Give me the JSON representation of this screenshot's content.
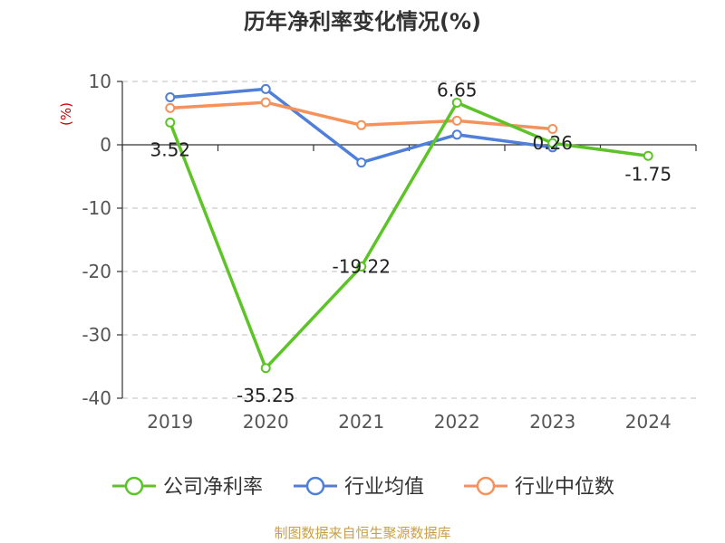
{
  "title": "历年净利率变化情况(%)",
  "source": "制图数据来自恒生聚源数据库",
  "chart_data": {
    "type": "line",
    "title": "历年净利率变化情况(%)",
    "ylabel": "(%)",
    "xlabel": "",
    "categories": [
      "2019",
      "2020",
      "2021",
      "2022",
      "2023",
      "2024"
    ],
    "ylim": [
      -40,
      10
    ],
    "yticks": [
      10,
      0,
      -10,
      -20,
      -30,
      -40
    ],
    "grid": true,
    "legend_position": "bottom",
    "series": [
      {
        "name": "公司净利率",
        "color": "#5cc427",
        "values": [
          3.52,
          -35.25,
          -19.22,
          6.65,
          0.26,
          -1.75
        ],
        "labels": [
          "3.52",
          "-35.25",
          "-19.22",
          "6.65",
          "0.26",
          "-1.75"
        ]
      },
      {
        "name": "行业均值",
        "color": "#4f7fd8",
        "values": [
          7.5,
          8.8,
          -2.8,
          1.6,
          -0.4,
          null
        ]
      },
      {
        "name": "行业中位数",
        "color": "#f5925c",
        "values": [
          5.8,
          6.7,
          3.1,
          3.8,
          2.5,
          null
        ]
      }
    ]
  }
}
